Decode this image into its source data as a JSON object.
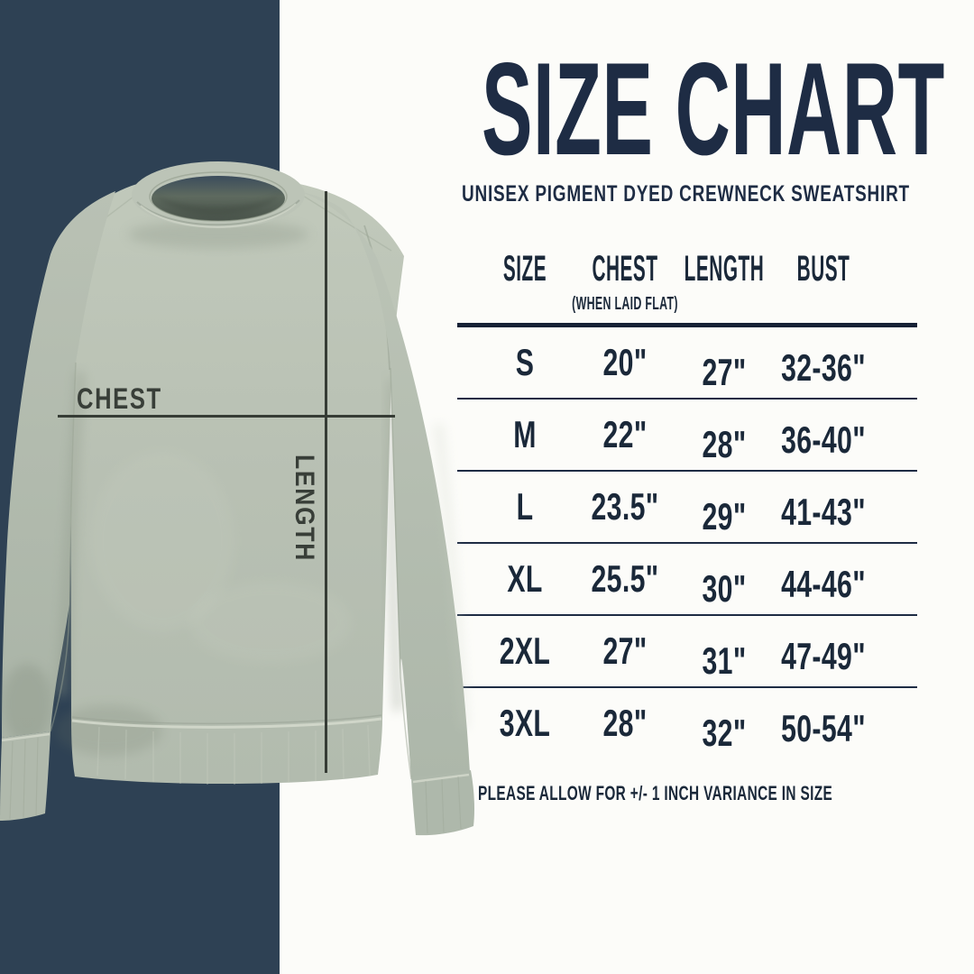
{
  "colors": {
    "navy_block": "#2e4154",
    "ink_navy": "#1e2c44",
    "table_ink": "#1a2839",
    "sweatshirt_sage": "#b7bfb2",
    "annotation_ink": "#383e38",
    "background": "#fcfcf9"
  },
  "header": {
    "title": "SIZE CHART",
    "subtitle": "UNISEX PIGMENT DYED CREWNECK SWEATSHIRT"
  },
  "garment": {
    "name": "unisex pigment dyed crewneck sweatshirt",
    "chest_label": "CHEST",
    "length_label": "LENGTH"
  },
  "table": {
    "columns": [
      "SIZE",
      "CHEST",
      "LENGTH",
      "BUST"
    ],
    "chest_subnote": "(WHEN LAID FLAT)",
    "rows": [
      {
        "size": "S",
        "chest": "20\"",
        "length": "27\"",
        "bust": "32-36\""
      },
      {
        "size": "M",
        "chest": "22\"",
        "length": "28\"",
        "bust": "36-40\""
      },
      {
        "size": "L",
        "chest": "23.5\"",
        "length": "29\"",
        "bust": "41-43\""
      },
      {
        "size": "XL",
        "chest": "25.5\"",
        "length": "30\"",
        "bust": "44-46\""
      },
      {
        "size": "2XL",
        "chest": "27\"",
        "length": "31\"",
        "bust": "47-49\""
      },
      {
        "size": "3XL",
        "chest": "28\"",
        "length": "32\"",
        "bust": "50-54\""
      }
    ]
  },
  "footnote": "PLEASE ALLOW FOR +/- 1 INCH VARIANCE IN SIZE",
  "chart_data": {
    "type": "table",
    "title": "SIZE CHART",
    "subtitle": "UNISEX PIGMENT DYED CREWNECK SWEATSHIRT",
    "columns": [
      "SIZE",
      "CHEST (WHEN LAID FLAT)",
      "LENGTH",
      "BUST"
    ],
    "rows": [
      [
        "S",
        "20\"",
        "27\"",
        "32-36\""
      ],
      [
        "M",
        "22\"",
        "28\"",
        "36-40\""
      ],
      [
        "L",
        "23.5\"",
        "29\"",
        "41-43\""
      ],
      [
        "XL",
        "25.5\"",
        "30\"",
        "44-46\""
      ],
      [
        "2XL",
        "27\"",
        "31\"",
        "47-49\""
      ],
      [
        "3XL",
        "28\"",
        "32\"",
        "50-54\""
      ]
    ],
    "note": "PLEASE ALLOW FOR +/- 1 INCH VARIANCE IN SIZE"
  }
}
